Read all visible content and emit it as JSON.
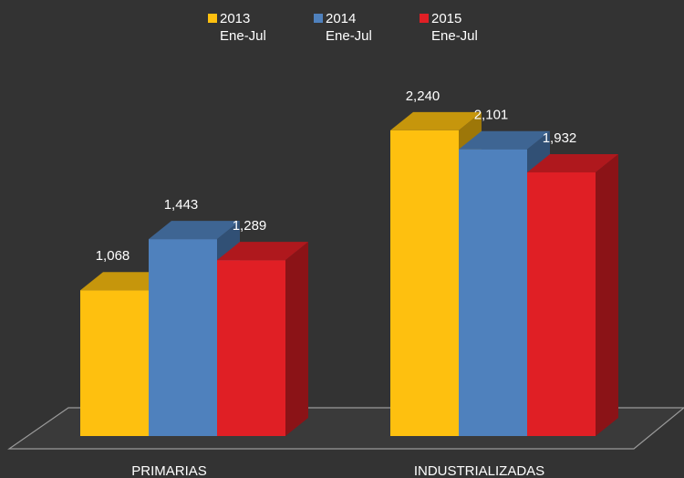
{
  "chart_data": {
    "type": "bar",
    "categories": [
      "PRIMARIAS",
      "INDUSTRIALIZADAS"
    ],
    "series": [
      {
        "name": "2013 Ene-Jul",
        "color": "#fec00f",
        "values": [
          1068,
          2240
        ],
        "value_labels": [
          "1,068",
          "2,240"
        ]
      },
      {
        "name": "2014 Ene-Jul",
        "color": "#4f81bd",
        "values": [
          1443,
          2101
        ],
        "value_labels": [
          "1,443",
          "2,101"
        ]
      },
      {
        "name": "2015 Ene-Jul",
        "color": "#e01f25",
        "values": [
          1289,
          1932
        ],
        "value_labels": [
          "1,289",
          "1,932"
        ]
      }
    ]
  }
}
